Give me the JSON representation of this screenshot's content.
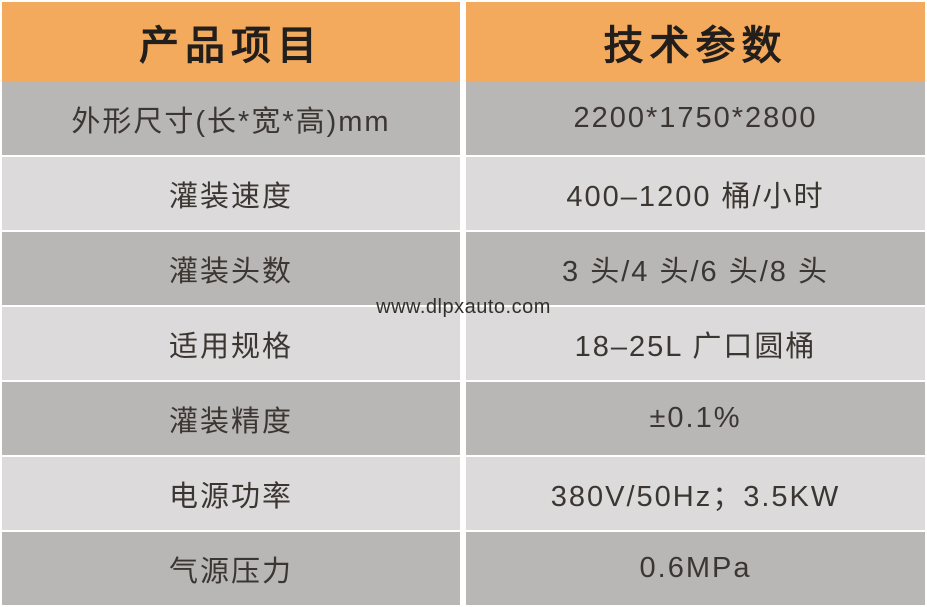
{
  "table": {
    "header": {
      "col1": "产品项目",
      "col2": "技术参数"
    },
    "rows": [
      {
        "label": "外形尺寸(长*宽*高)mm",
        "value": "2200*1750*2800"
      },
      {
        "label": "灌装速度",
        "value": "400–1200 桶/小时"
      },
      {
        "label": "灌装头数",
        "value": "3 头/4 头/6 头/8 头"
      },
      {
        "label": "适用规格",
        "value": "18–25L 广口圆桶"
      },
      {
        "label": "灌装精度",
        "value": "±0.1%"
      },
      {
        "label": "电源功率",
        "value": "380V/50Hz；3.5KW"
      },
      {
        "label": "气源压力",
        "value": "0.6MPa"
      }
    ]
  },
  "watermark": "www.dlpxauto.com",
  "colors": {
    "header_bg": "#F4AA5C",
    "header_text": "#221E1C",
    "row_dark": "#B9B6B6",
    "row_light": "#DCDADA",
    "row_text": "#3C3633",
    "watermark_text": "#33302B",
    "divider": "#FFFFFF"
  }
}
